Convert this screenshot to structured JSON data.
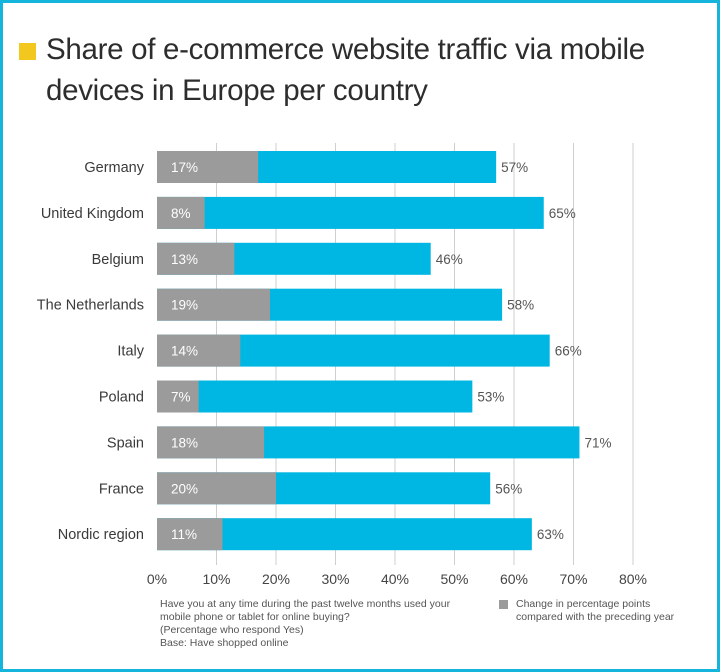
{
  "title": "Share of e-commerce website traffic via mobile devices in Europe per country",
  "colors": {
    "border": "#14b4dc",
    "title_marker": "#f3c81e",
    "total_bar": "#00b6e2",
    "change_bar": "#9b9b9b",
    "grid": "#cfcfcf"
  },
  "chart_data": {
    "type": "bar",
    "orientation": "horizontal",
    "stacked": "overlay",
    "categories": [
      "Germany",
      "United Kingdom",
      "Belgium",
      "The Netherlands",
      "Italy",
      "Poland",
      "Spain",
      "France",
      "Nordic region"
    ],
    "series": [
      {
        "values": [
          57,
          65,
          46,
          58,
          66,
          53,
          71,
          56,
          63
        ],
        "labels": [
          "57%",
          "65%",
          "46%",
          "58%",
          "66%",
          "53%",
          "71%",
          "56%",
          "63%"
        ],
        "color": "#00b6e2"
      },
      {
        "name": "Change in percentage points compared with the preceding year",
        "values": [
          17,
          8,
          13,
          19,
          14,
          7,
          18,
          20,
          11
        ],
        "labels": [
          "17%",
          "8%",
          "13%",
          "19%",
          "14%",
          "7%",
          "18%",
          "20%",
          "11%"
        ],
        "color": "#9b9b9b"
      }
    ],
    "xlim": [
      0,
      80
    ],
    "xticks": [
      "0%",
      "10%",
      "20%",
      "30%",
      "40%",
      "50%",
      "60%",
      "70%",
      "80%"
    ],
    "grid": true,
    "legend_position": "bottom-right"
  },
  "footnote": {
    "line1": "Have you at any time during the past twelve months used your",
    "line2": "mobile phone or tablet for online buying?",
    "line3": "(Percentage who respond Yes)",
    "line4": "Base: Have shopped online"
  },
  "legend": {
    "label": "Change in percentage points compared with the preceding year"
  }
}
